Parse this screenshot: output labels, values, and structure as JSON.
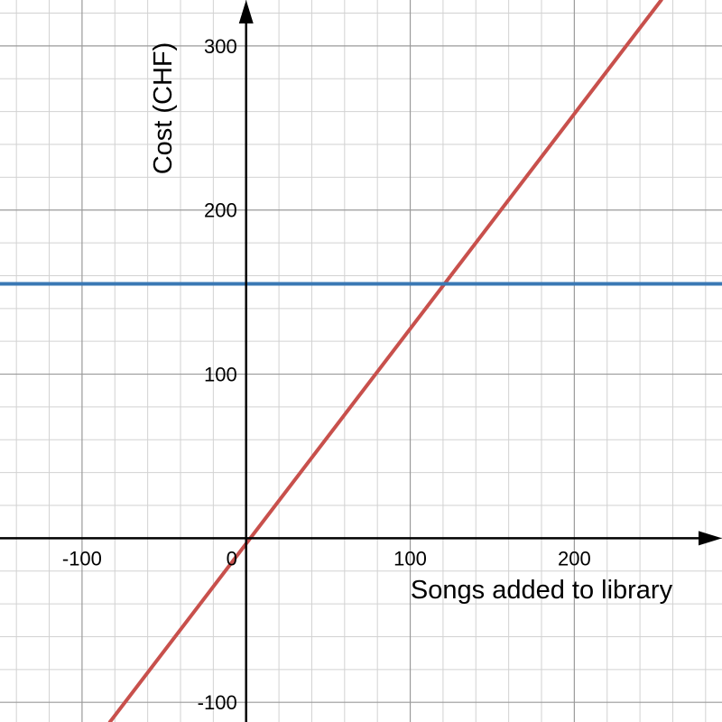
{
  "chart_data": {
    "type": "line",
    "xlabel": "Songs added to library",
    "ylabel": "Cost (CHF)",
    "xlim": [
      -150,
      290
    ],
    "ylim": [
      -112,
      328
    ],
    "grid": true,
    "major_grid_step": 100,
    "minor_grid_step": 20,
    "x_ticks": [
      {
        "value": -100,
        "label": "-100"
      },
      {
        "value": 0,
        "label": "0"
      },
      {
        "value": 100,
        "label": "100"
      },
      {
        "value": 200,
        "label": "200"
      }
    ],
    "y_ticks": [
      {
        "value": -100,
        "label": "-100"
      },
      {
        "value": 100,
        "label": "100"
      },
      {
        "value": 200,
        "label": "200"
      },
      {
        "value": 300,
        "label": "300"
      }
    ],
    "series": [
      {
        "color": "#c8504c",
        "x": [
          -83,
          253
        ],
        "y": [
          -112,
          328
        ]
      },
      {
        "color": "#3a78b4",
        "x": [
          -150,
          290
        ],
        "y": [
          155,
          155
        ]
      }
    ]
  }
}
